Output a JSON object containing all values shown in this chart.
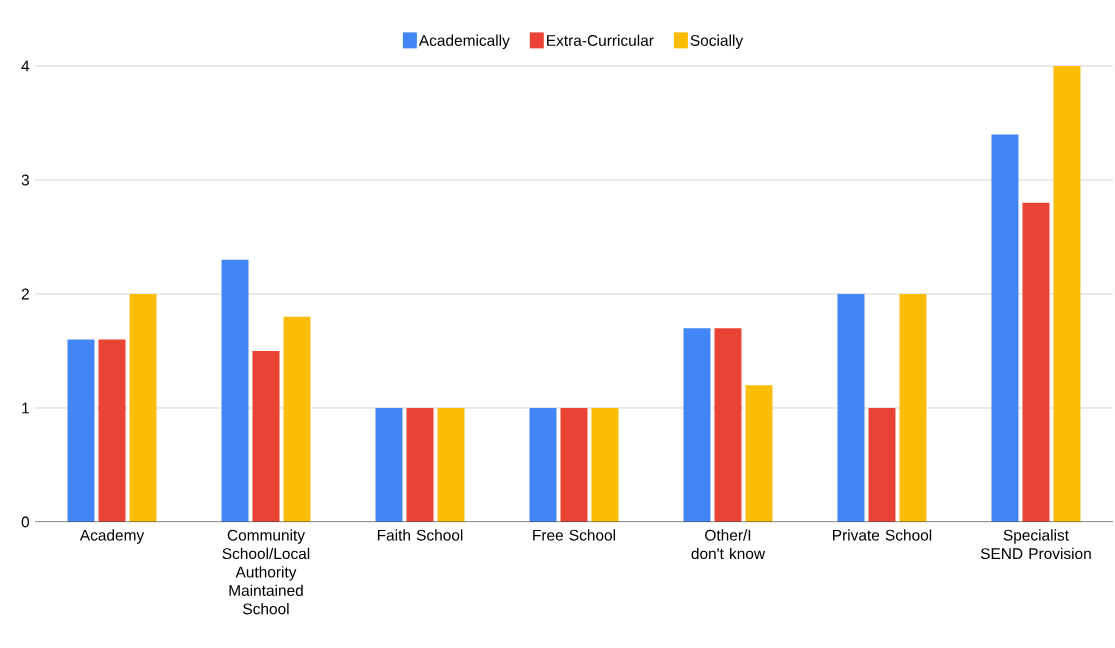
{
  "chart_data": {
    "type": "bar",
    "categories": [
      "Academy",
      "Community School/Local Authority Maintained School",
      "Faith School",
      "Free School",
      "Other/I don't know",
      "Private School",
      "Specialist SEND Provision"
    ],
    "series": [
      {
        "name": "Academically",
        "color": "#4285f4",
        "values": [
          1.6,
          2.3,
          1,
          1,
          1.7,
          2,
          3.4
        ]
      },
      {
        "name": "Extra-Curricular",
        "color": "#ea4335",
        "values": [
          1.6,
          1.5,
          1,
          1,
          1.7,
          1,
          2.8
        ]
      },
      {
        "name": "Socially",
        "color": "#fbbc04",
        "values": [
          2,
          1.8,
          1,
          1,
          1.2,
          2,
          4
        ]
      }
    ],
    "ylim": [
      0,
      4
    ],
    "yticks": [
      0,
      1,
      2,
      3,
      4
    ],
    "grid": "y",
    "legend": "top"
  }
}
